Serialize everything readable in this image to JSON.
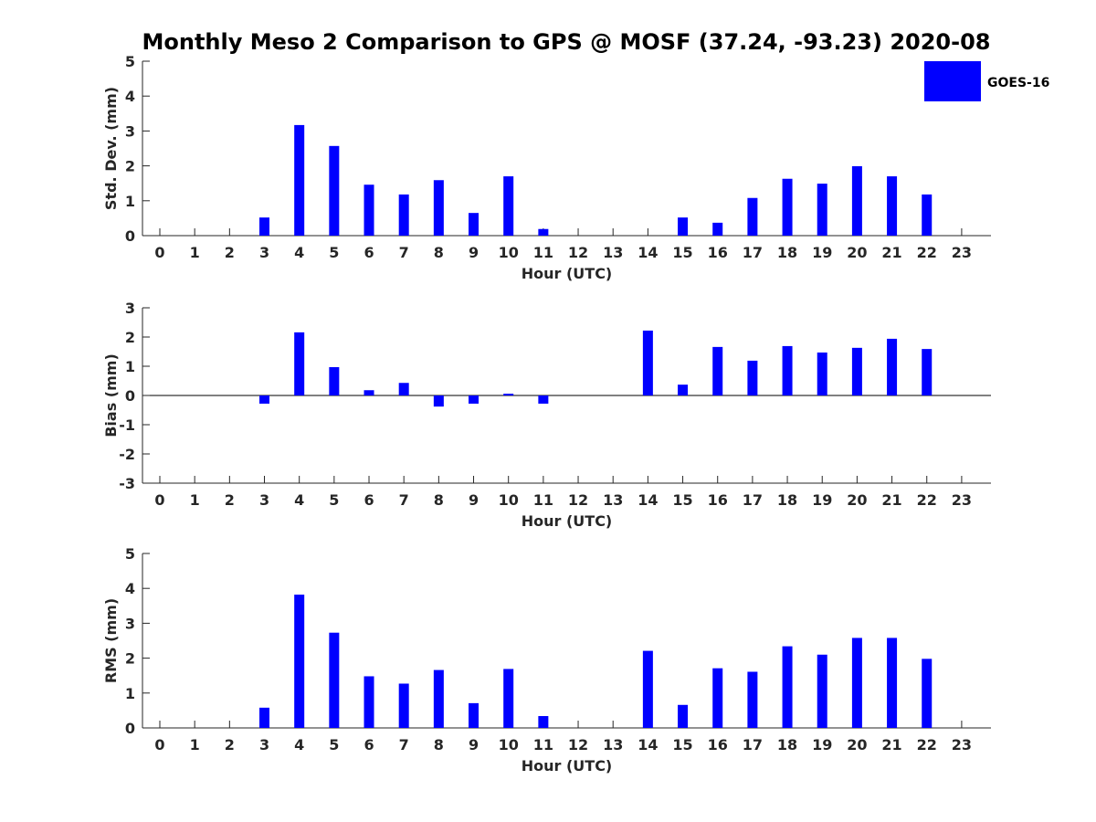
{
  "title": "Monthly Meso 2 Comparison to GPS @ MOSF (37.24, -93.23) 2020-08",
  "legend": {
    "label": "GOES-16",
    "color": "#0000ff",
    "placement": "top-right"
  },
  "chart_data": [
    {
      "type": "bar",
      "xlabel": "Hour (UTC)",
      "ylabel": "Std. Dev. (mm)",
      "categories": [
        "0",
        "1",
        "2",
        "3",
        "4",
        "5",
        "6",
        "7",
        "8",
        "9",
        "10",
        "11",
        "12",
        "13",
        "14",
        "15",
        "16",
        "17",
        "18",
        "19",
        "20",
        "21",
        "22",
        "23"
      ],
      "series": [
        {
          "name": "GOES-16",
          "values": [
            null,
            null,
            null,
            0.52,
            3.17,
            2.57,
            1.46,
            1.18,
            1.59,
            0.65,
            1.7,
            0.19,
            null,
            null,
            null,
            0.52,
            0.37,
            1.08,
            1.63,
            1.49,
            1.99,
            1.7,
            1.18,
            null
          ]
        }
      ],
      "ylim": [
        0,
        5
      ],
      "yticks": [
        "0",
        "1",
        "2",
        "3",
        "4",
        "5"
      ]
    },
    {
      "type": "bar",
      "xlabel": "Hour (UTC)",
      "ylabel": "Bias (mm)",
      "categories": [
        "0",
        "1",
        "2",
        "3",
        "4",
        "5",
        "6",
        "7",
        "8",
        "9",
        "10",
        "11",
        "12",
        "13",
        "14",
        "15",
        "16",
        "17",
        "18",
        "19",
        "20",
        "21",
        "22",
        "23"
      ],
      "series": [
        {
          "name": "GOES-16",
          "values": [
            null,
            null,
            null,
            -0.28,
            2.16,
            0.97,
            0.18,
            0.43,
            -0.38,
            -0.28,
            0.06,
            -0.28,
            null,
            null,
            2.22,
            0.37,
            1.66,
            1.19,
            1.69,
            1.47,
            1.63,
            1.94,
            1.59,
            null
          ]
        }
      ],
      "ylim": [
        -3,
        3
      ],
      "yticks": [
        "-3",
        "-2",
        "-1",
        "0",
        "1",
        "2",
        "3"
      ]
    },
    {
      "type": "bar",
      "xlabel": "Hour (UTC)",
      "ylabel": "RMS (mm)",
      "categories": [
        "0",
        "1",
        "2",
        "3",
        "4",
        "5",
        "6",
        "7",
        "8",
        "9",
        "10",
        "11",
        "12",
        "13",
        "14",
        "15",
        "16",
        "17",
        "18",
        "19",
        "20",
        "21",
        "22",
        "23"
      ],
      "series": [
        {
          "name": "GOES-16",
          "values": [
            null,
            null,
            null,
            0.58,
            3.82,
            2.73,
            1.48,
            1.27,
            1.66,
            0.71,
            1.69,
            0.34,
            null,
            null,
            2.21,
            0.66,
            1.71,
            1.61,
            2.34,
            2.1,
            2.58,
            2.58,
            1.98,
            null
          ]
        }
      ],
      "ylim": [
        0,
        5
      ],
      "yticks": [
        "0",
        "1",
        "2",
        "3",
        "4",
        "5"
      ]
    }
  ]
}
